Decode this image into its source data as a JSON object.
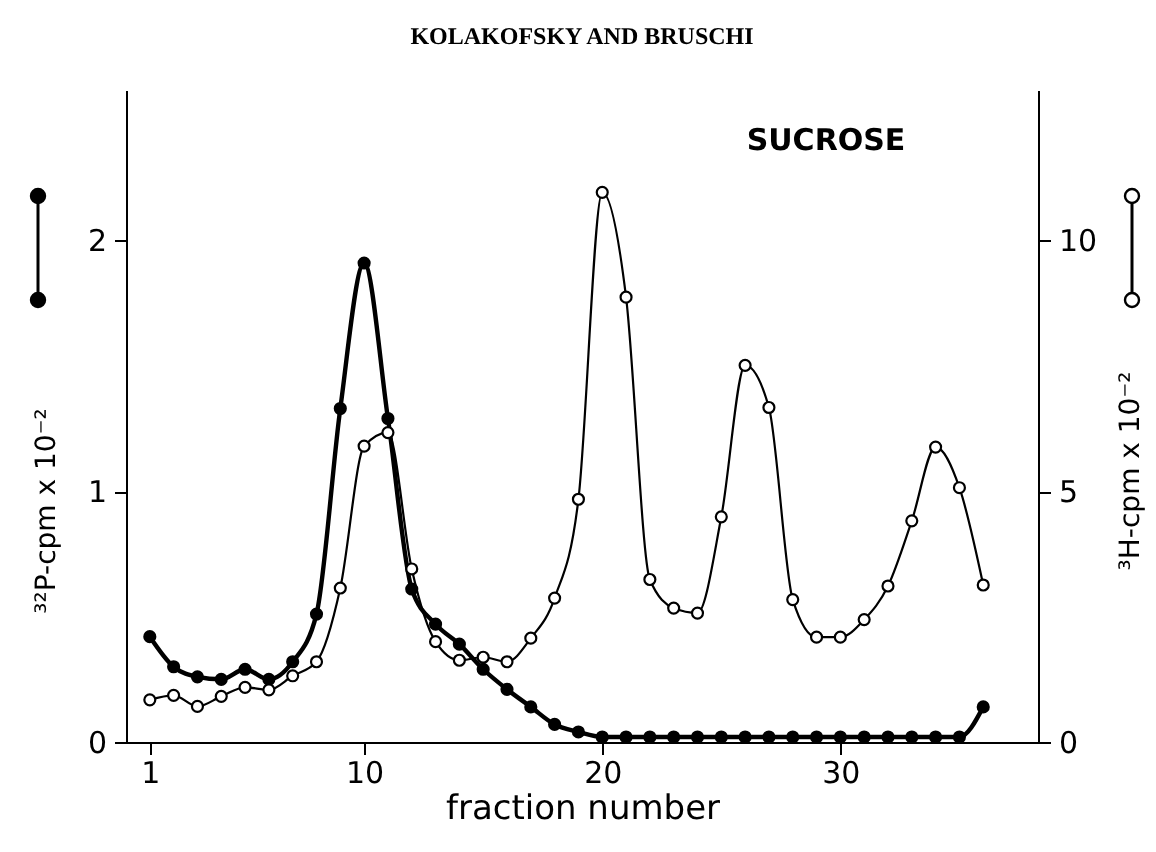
{
  "chart_data": {
    "type": "line",
    "title": "KOLAKOFSKY AND BRUSCHI",
    "xlabel": "fraction number",
    "ylabel": "³²P-cpm x 10⁻²",
    "y2label": "³H-cpm x 10⁻²",
    "annotations": [
      "SUCROSE"
    ],
    "x": [
      1,
      2,
      3,
      4,
      5,
      6,
      7,
      8,
      9,
      10,
      11,
      12,
      13,
      14,
      15,
      16,
      17,
      18,
      19,
      20,
      21,
      22,
      23,
      24,
      25,
      26,
      27,
      28,
      29,
      30,
      31,
      32,
      33,
      34,
      35,
      36
    ],
    "series": [
      {
        "color": "#000000",
        "values": [
          0.42,
          0.3,
          0.26,
          0.25,
          0.29,
          0.25,
          0.32,
          0.51,
          1.33,
          1.91,
          1.29,
          0.61,
          0.47,
          0.39,
          0.29,
          0.21,
          0.14,
          0.07,
          0.04,
          0.02,
          0.02,
          0.02,
          0.02,
          0.02,
          0.02,
          0.02,
          0.02,
          0.02,
          0.02,
          0.02,
          0.02,
          0.02,
          0.02,
          0.02,
          0.02,
          0.14
        ]
      },
      {
        "color": "#000000",
        "axis": "y2",
        "values": [
          0.84,
          0.93,
          0.71,
          0.91,
          1.09,
          1.04,
          1.32,
          1.6,
          3.07,
          5.9,
          6.17,
          3.45,
          2.0,
          1.63,
          1.69,
          1.6,
          2.07,
          2.87,
          4.84,
          10.96,
          8.87,
          3.24,
          2.67,
          2.57,
          4.49,
          7.51,
          6.67,
          2.84,
          2.09,
          2.09,
          2.44,
          3.11,
          4.41,
          5.88,
          5.07,
          3.13
        ]
      }
    ],
    "xlim": [
      0,
      38.3
    ],
    "xticks": [
      1,
      10,
      20,
      30
    ],
    "ylim": [
      0,
      2.6
    ],
    "yticks": [
      0,
      1,
      2
    ],
    "y2lim": [
      0,
      13
    ],
    "y2ticks": [
      0,
      5,
      10
    ],
    "marker": "circle",
    "line_style": "solid",
    "grid": false
  }
}
